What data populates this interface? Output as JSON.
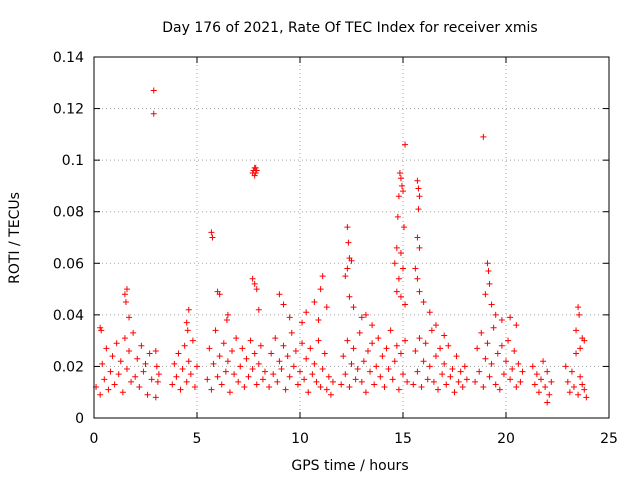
{
  "chart_data": {
    "type": "scatter",
    "title": "Day 176 of 2021, Rate Of TEC Index for receiver xmis",
    "xlabel": "GPS time / hours",
    "ylabel": "ROTI / TECUs",
    "xlim": [
      0,
      25
    ],
    "ylim": [
      0,
      0.14
    ],
    "xticks": [
      0,
      5,
      10,
      15,
      20,
      25
    ],
    "xtick_labels": [
      "0",
      "5",
      "10",
      "15",
      "20",
      "25"
    ],
    "yticks": [
      0,
      0.02,
      0.04,
      0.06,
      0.08,
      0.1,
      0.12,
      0.14
    ],
    "ytick_labels": [
      "0",
      "0.02",
      "0.04",
      "0.06",
      "0.08",
      "0.1",
      "0.12",
      "0.14"
    ],
    "grid": true,
    "marker": "+",
    "series": [
      {
        "name": "ROTI",
        "color": "#ff0000",
        "points": [
          [
            0.1,
            0.012
          ],
          [
            0.3,
            0.009
          ],
          [
            0.4,
            0.021
          ],
          [
            0.5,
            0.015
          ],
          [
            0.6,
            0.027
          ],
          [
            0.7,
            0.011
          ],
          [
            0.8,
            0.018
          ],
          [
            0.9,
            0.024
          ],
          [
            1.0,
            0.013
          ],
          [
            1.1,
            0.029
          ],
          [
            1.2,
            0.017
          ],
          [
            1.3,
            0.022
          ],
          [
            1.4,
            0.01
          ],
          [
            1.5,
            0.031
          ],
          [
            1.6,
            0.019
          ],
          [
            1.7,
            0.026
          ],
          [
            1.8,
            0.014
          ],
          [
            1.9,
            0.033
          ],
          [
            2.0,
            0.016
          ],
          [
            2.1,
            0.023
          ],
          [
            2.2,
            0.012
          ],
          [
            2.3,
            0.028
          ],
          [
            2.4,
            0.018
          ],
          [
            2.5,
            0.021
          ],
          [
            2.6,
            0.009
          ],
          [
            2.7,
            0.025
          ],
          [
            2.8,
            0.015
          ],
          [
            0.3,
            0.035
          ],
          [
            0.35,
            0.034
          ],
          [
            1.5,
            0.048
          ],
          [
            1.6,
            0.05
          ],
          [
            1.55,
            0.045
          ],
          [
            1.7,
            0.039
          ],
          [
            2.9,
            0.127
          ],
          [
            2.9,
            0.118
          ],
          [
            3.0,
            0.026
          ],
          [
            3.05,
            0.02
          ],
          [
            3.1,
            0.014
          ],
          [
            3.0,
            0.008
          ],
          [
            3.15,
            0.017
          ],
          [
            3.8,
            0.013
          ],
          [
            3.9,
            0.021
          ],
          [
            4.0,
            0.016
          ],
          [
            4.1,
            0.025
          ],
          [
            4.2,
            0.011
          ],
          [
            4.3,
            0.019
          ],
          [
            4.4,
            0.028
          ],
          [
            4.5,
            0.014
          ],
          [
            4.6,
            0.022
          ],
          [
            4.7,
            0.017
          ],
          [
            4.8,
            0.03
          ],
          [
            4.9,
            0.012
          ],
          [
            5.0,
            0.02
          ],
          [
            4.5,
            0.037
          ],
          [
            4.6,
            0.042
          ],
          [
            4.55,
            0.034
          ],
          [
            5.5,
            0.015
          ],
          [
            5.6,
            0.027
          ],
          [
            5.7,
            0.011
          ],
          [
            5.8,
            0.021
          ],
          [
            5.9,
            0.034
          ],
          [
            6.0,
            0.016
          ],
          [
            6.1,
            0.024
          ],
          [
            6.2,
            0.013
          ],
          [
            6.3,
            0.029
          ],
          [
            6.4,
            0.018
          ],
          [
            6.5,
            0.022
          ],
          [
            6.6,
            0.01
          ],
          [
            6.7,
            0.026
          ],
          [
            6.8,
            0.017
          ],
          [
            6.9,
            0.031
          ],
          [
            7.0,
            0.014
          ],
          [
            7.1,
            0.02
          ],
          [
            7.2,
            0.027
          ],
          [
            7.3,
            0.012
          ],
          [
            7.4,
            0.023
          ],
          [
            7.5,
            0.016
          ],
          [
            7.6,
            0.03
          ],
          [
            7.7,
            0.019
          ],
          [
            7.8,
            0.025
          ],
          [
            7.9,
            0.013
          ],
          [
            8.0,
            0.021
          ],
          [
            8.1,
            0.028
          ],
          [
            8.2,
            0.015
          ],
          [
            8.3,
            0.018
          ],
          [
            5.7,
            0.072
          ],
          [
            5.75,
            0.07
          ],
          [
            6.0,
            0.049
          ],
          [
            6.1,
            0.048
          ],
          [
            6.5,
            0.04
          ],
          [
            6.45,
            0.038
          ],
          [
            7.7,
            0.095
          ],
          [
            7.75,
            0.096
          ],
          [
            7.8,
            0.097
          ],
          [
            7.85,
            0.095
          ],
          [
            7.9,
            0.096
          ],
          [
            7.8,
            0.094
          ],
          [
            7.85,
            0.097
          ],
          [
            7.7,
            0.054
          ],
          [
            7.8,
            0.052
          ],
          [
            7.9,
            0.05
          ],
          [
            8.0,
            0.042
          ],
          [
            8.5,
            0.012
          ],
          [
            8.6,
            0.025
          ],
          [
            8.7,
            0.017
          ],
          [
            8.8,
            0.031
          ],
          [
            8.9,
            0.014
          ],
          [
            9.0,
            0.022
          ],
          [
            9.1,
            0.019
          ],
          [
            9.2,
            0.028
          ],
          [
            9.3,
            0.011
          ],
          [
            9.4,
            0.024
          ],
          [
            9.5,
            0.016
          ],
          [
            9.6,
            0.033
          ],
          [
            9.7,
            0.02
          ],
          [
            9.8,
            0.026
          ],
          [
            9.9,
            0.013
          ],
          [
            10.0,
            0.018
          ],
          [
            10.1,
            0.029
          ],
          [
            10.2,
            0.015
          ],
          [
            10.3,
            0.023
          ],
          [
            10.4,
            0.01
          ],
          [
            10.5,
            0.027
          ],
          [
            10.6,
            0.017
          ],
          [
            10.7,
            0.021
          ],
          [
            10.8,
            0.014
          ],
          [
            10.9,
            0.03
          ],
          [
            11.0,
            0.012
          ],
          [
            11.1,
            0.019
          ],
          [
            11.2,
            0.025
          ],
          [
            11.3,
            0.011
          ],
          [
            11.4,
            0.016
          ],
          [
            11.5,
            0.009
          ],
          [
            11.6,
            0.014
          ],
          [
            9.0,
            0.048
          ],
          [
            9.2,
            0.044
          ],
          [
            9.5,
            0.039
          ],
          [
            10.1,
            0.037
          ],
          [
            10.3,
            0.041
          ],
          [
            10.7,
            0.045
          ],
          [
            11.0,
            0.05
          ],
          [
            11.1,
            0.055
          ],
          [
            11.3,
            0.043
          ],
          [
            10.9,
            0.038
          ],
          [
            12.0,
            0.013
          ],
          [
            12.1,
            0.024
          ],
          [
            12.2,
            0.017
          ],
          [
            12.3,
            0.03
          ],
          [
            12.4,
            0.012
          ],
          [
            12.5,
            0.021
          ],
          [
            12.6,
            0.027
          ],
          [
            12.7,
            0.015
          ],
          [
            12.8,
            0.019
          ],
          [
            12.9,
            0.033
          ],
          [
            13.0,
            0.014
          ],
          [
            13.1,
            0.022
          ],
          [
            13.2,
            0.01
          ],
          [
            13.3,
            0.026
          ],
          [
            13.4,
            0.018
          ],
          [
            13.5,
            0.029
          ],
          [
            13.6,
            0.013
          ],
          [
            13.7,
            0.02
          ],
          [
            13.8,
            0.031
          ],
          [
            13.9,
            0.016
          ],
          [
            14.0,
            0.024
          ],
          [
            14.1,
            0.012
          ],
          [
            14.2,
            0.027
          ],
          [
            14.3,
            0.019
          ],
          [
            14.4,
            0.034
          ],
          [
            14.5,
            0.015
          ],
          [
            14.6,
            0.022
          ],
          [
            14.7,
            0.028
          ],
          [
            14.8,
            0.011
          ],
          [
            14.9,
            0.025
          ],
          [
            15.0,
            0.017
          ],
          [
            15.1,
            0.03
          ],
          [
            15.2,
            0.014
          ],
          [
            12.3,
            0.074
          ],
          [
            12.35,
            0.068
          ],
          [
            12.4,
            0.062
          ],
          [
            12.5,
            0.061
          ],
          [
            12.3,
            0.058
          ],
          [
            12.2,
            0.055
          ],
          [
            12.4,
            0.047
          ],
          [
            12.6,
            0.043
          ],
          [
            13.0,
            0.039
          ],
          [
            13.2,
            0.04
          ],
          [
            13.5,
            0.036
          ],
          [
            14.6,
            0.06
          ],
          [
            14.7,
            0.066
          ],
          [
            14.75,
            0.078
          ],
          [
            14.8,
            0.086
          ],
          [
            14.85,
            0.095
          ],
          [
            14.9,
            0.093
          ],
          [
            14.95,
            0.09
          ],
          [
            15.0,
            0.088
          ],
          [
            15.05,
            0.074
          ],
          [
            15.1,
            0.106
          ],
          [
            14.9,
            0.064
          ],
          [
            15.0,
            0.058
          ],
          [
            14.8,
            0.054
          ],
          [
            14.9,
            0.047
          ],
          [
            15.1,
            0.044
          ],
          [
            14.7,
            0.049
          ],
          [
            15.5,
            0.013
          ],
          [
            15.6,
            0.026
          ],
          [
            15.7,
            0.018
          ],
          [
            15.8,
            0.031
          ],
          [
            15.9,
            0.012
          ],
          [
            16.0,
            0.022
          ],
          [
            16.1,
            0.029
          ],
          [
            16.2,
            0.015
          ],
          [
            16.3,
            0.02
          ],
          [
            16.4,
            0.034
          ],
          [
            16.5,
            0.014
          ],
          [
            16.6,
            0.024
          ],
          [
            16.7,
            0.011
          ],
          [
            16.8,
            0.027
          ],
          [
            16.9,
            0.017
          ],
          [
            17.0,
            0.021
          ],
          [
            17.1,
            0.013
          ],
          [
            17.2,
            0.028
          ],
          [
            17.3,
            0.016
          ],
          [
            17.4,
            0.019
          ],
          [
            17.5,
            0.01
          ],
          [
            17.6,
            0.024
          ],
          [
            17.7,
            0.014
          ],
          [
            17.8,
            0.018
          ],
          [
            17.9,
            0.012
          ],
          [
            18.0,
            0.02
          ],
          [
            18.1,
            0.015
          ],
          [
            15.7,
            0.092
          ],
          [
            15.75,
            0.089
          ],
          [
            15.8,
            0.086
          ],
          [
            15.75,
            0.081
          ],
          [
            15.7,
            0.07
          ],
          [
            15.8,
            0.066
          ],
          [
            15.6,
            0.058
          ],
          [
            15.7,
            0.054
          ],
          [
            15.8,
            0.049
          ],
          [
            16.0,
            0.045
          ],
          [
            16.3,
            0.041
          ],
          [
            16.6,
            0.036
          ],
          [
            17.0,
            0.032
          ],
          [
            18.5,
            0.014
          ],
          [
            18.6,
            0.027
          ],
          [
            18.7,
            0.018
          ],
          [
            18.8,
            0.033
          ],
          [
            18.9,
            0.012
          ],
          [
            19.0,
            0.023
          ],
          [
            19.1,
            0.029
          ],
          [
            19.2,
            0.016
          ],
          [
            19.3,
            0.021
          ],
          [
            19.4,
            0.035
          ],
          [
            19.5,
            0.013
          ],
          [
            19.6,
            0.025
          ],
          [
            19.7,
            0.011
          ],
          [
            19.8,
            0.028
          ],
          [
            19.9,
            0.017
          ],
          [
            20.0,
            0.022
          ],
          [
            20.1,
            0.03
          ],
          [
            20.2,
            0.015
          ],
          [
            20.3,
            0.019
          ],
          [
            20.4,
            0.026
          ],
          [
            20.5,
            0.012
          ],
          [
            20.6,
            0.021
          ],
          [
            20.7,
            0.014
          ],
          [
            20.8,
            0.018
          ],
          [
            18.9,
            0.109
          ],
          [
            19.1,
            0.06
          ],
          [
            19.15,
            0.057
          ],
          [
            19.2,
            0.052
          ],
          [
            19.0,
            0.048
          ],
          [
            19.3,
            0.044
          ],
          [
            19.5,
            0.04
          ],
          [
            19.8,
            0.038
          ],
          [
            20.2,
            0.039
          ],
          [
            20.5,
            0.036
          ],
          [
            21.3,
            0.02
          ],
          [
            21.4,
            0.013
          ],
          [
            21.5,
            0.017
          ],
          [
            21.6,
            0.01
          ],
          [
            21.7,
            0.015
          ],
          [
            21.8,
            0.022
          ],
          [
            21.9,
            0.012
          ],
          [
            22.0,
            0.018
          ],
          [
            22.1,
            0.009
          ],
          [
            22.2,
            0.014
          ],
          [
            22.0,
            0.006
          ],
          [
            22.9,
            0.02
          ],
          [
            23.0,
            0.014
          ],
          [
            23.1,
            0.01
          ],
          [
            23.2,
            0.018
          ],
          [
            23.3,
            0.012
          ],
          [
            23.4,
            0.025
          ],
          [
            23.5,
            0.009
          ],
          [
            23.6,
            0.016
          ],
          [
            23.7,
            0.013
          ],
          [
            23.8,
            0.011
          ],
          [
            23.9,
            0.008
          ],
          [
            23.5,
            0.043
          ],
          [
            23.55,
            0.04
          ],
          [
            23.4,
            0.034
          ],
          [
            23.7,
            0.031
          ],
          [
            23.8,
            0.03
          ],
          [
            23.6,
            0.027
          ]
        ]
      }
    ]
  }
}
